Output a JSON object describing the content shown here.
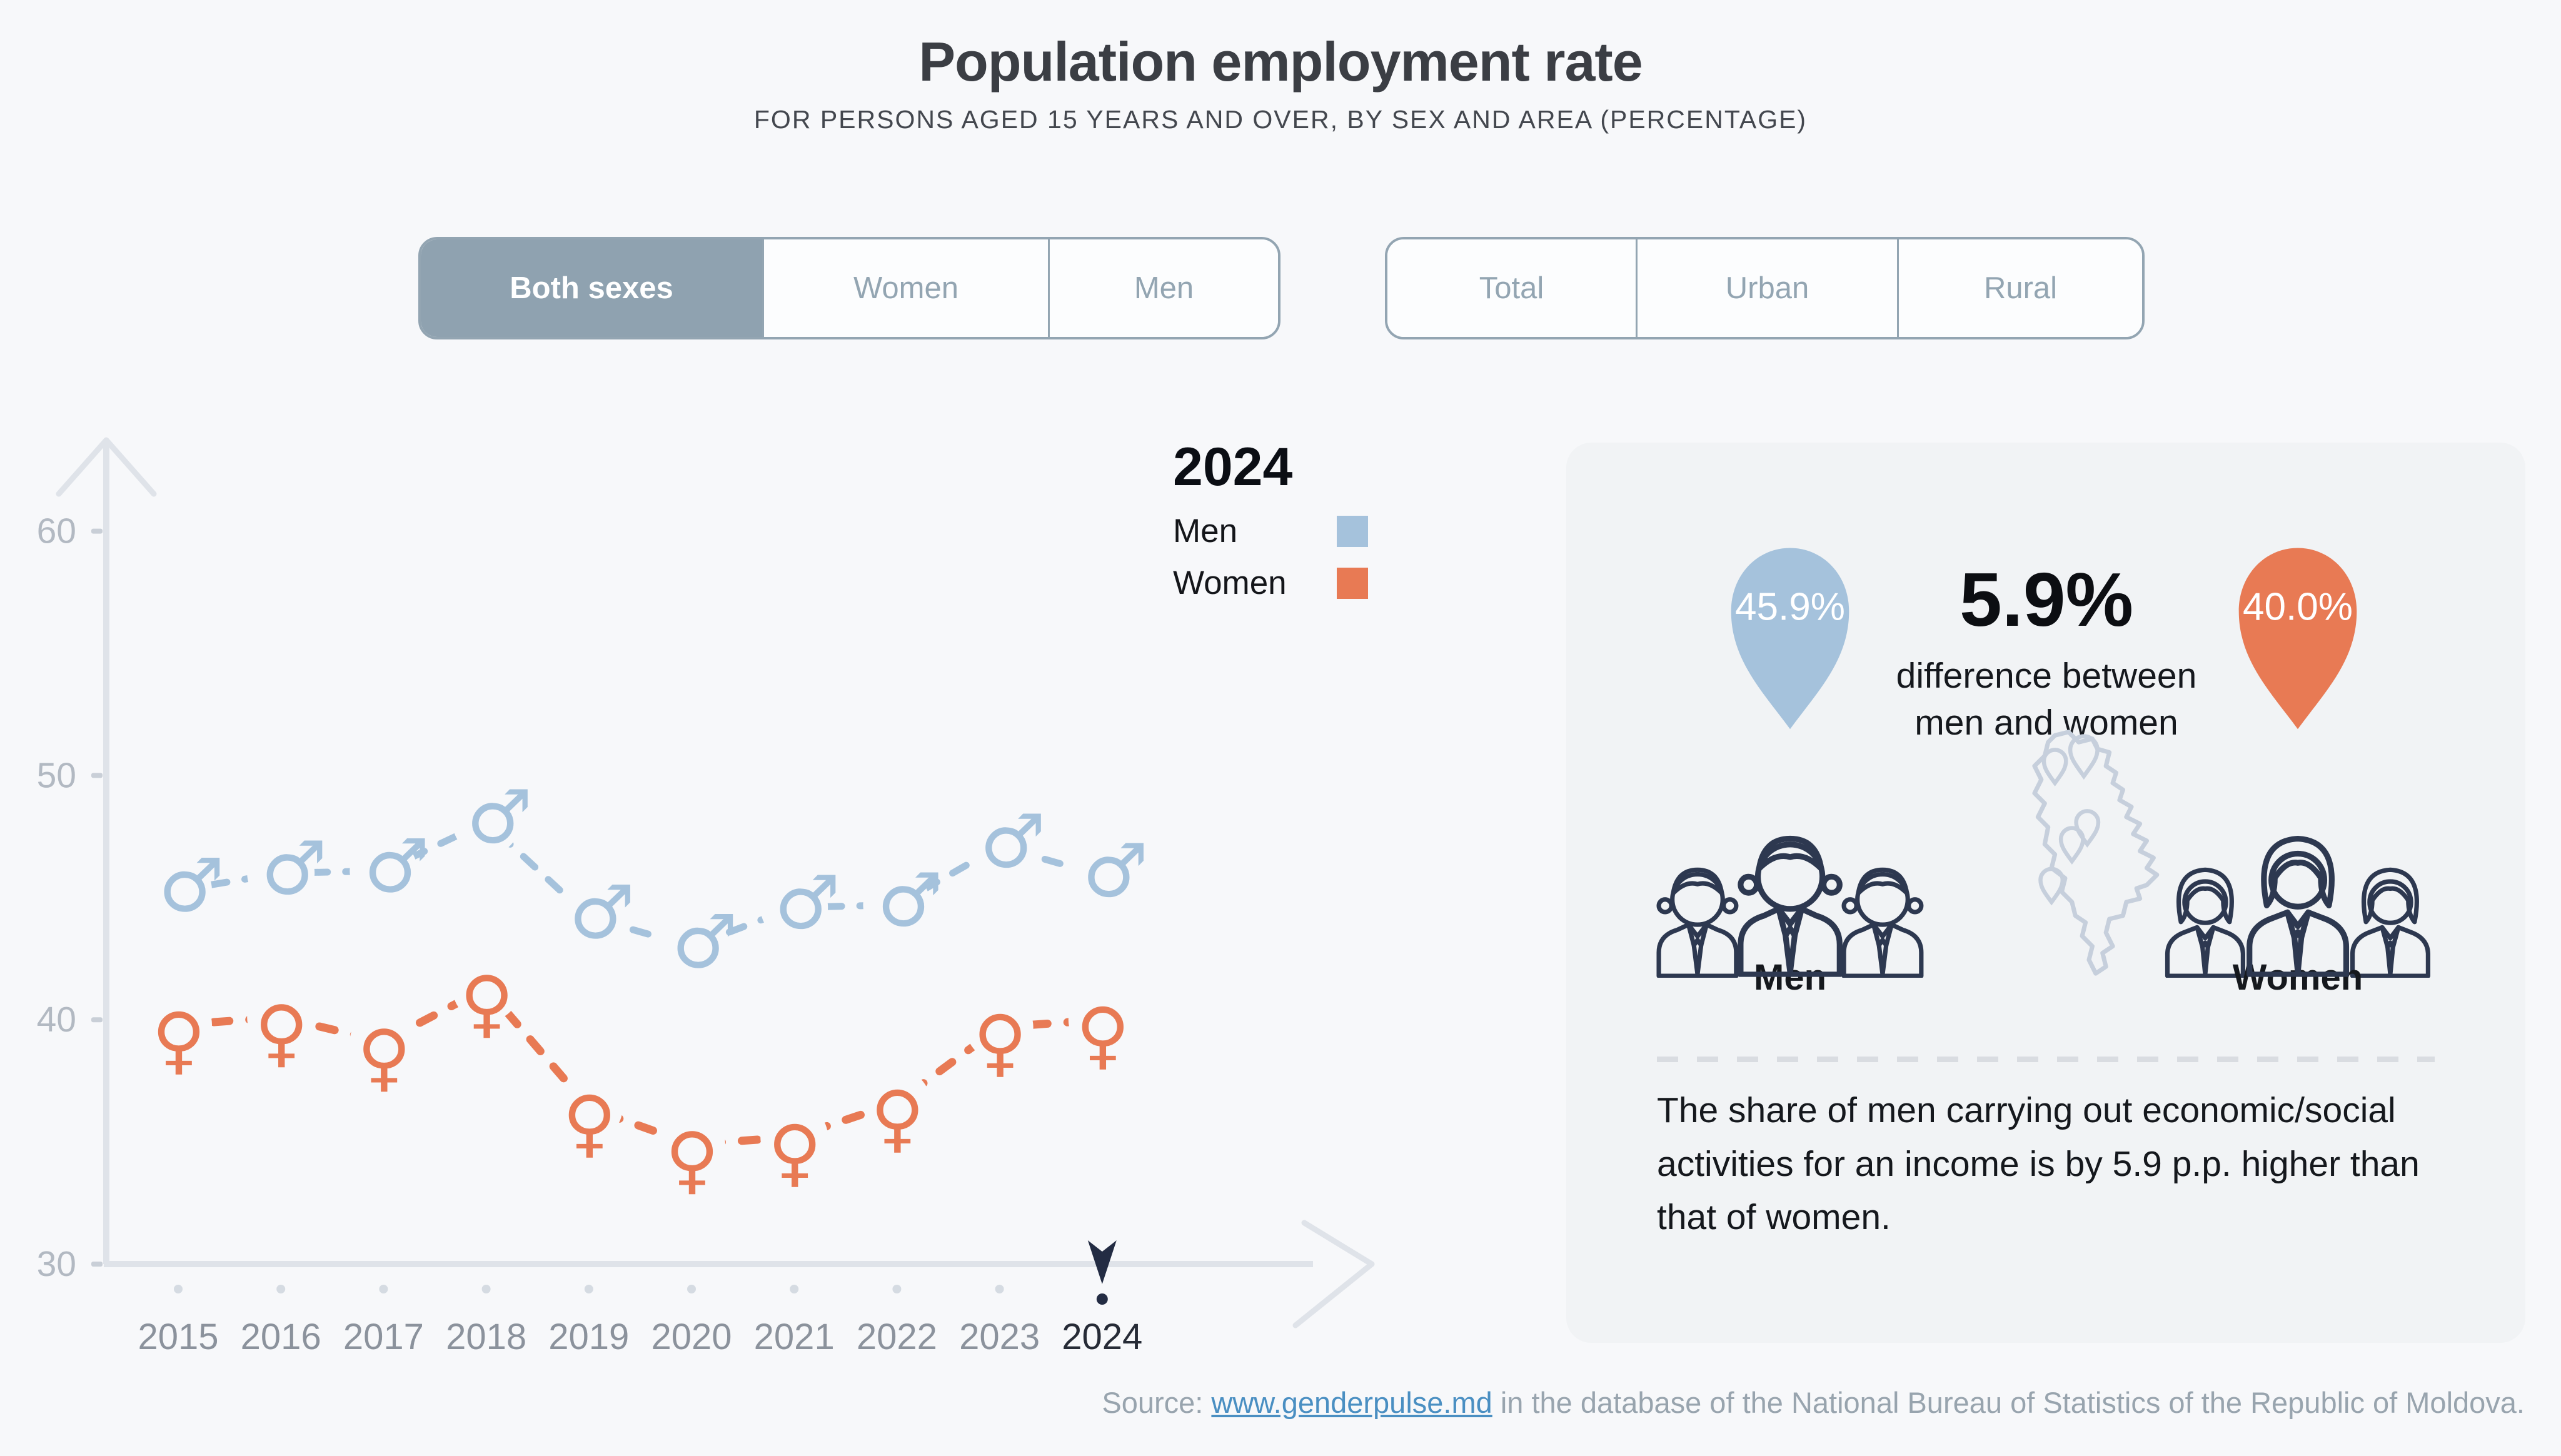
{
  "header": {
    "title": "Population employment rate",
    "subtitle": "FOR PERSONS AGED 15 YEARS AND OVER, BY SEX AND AREA (PERCENTAGE)"
  },
  "toggles": {
    "sex": {
      "selected": "Both sexes",
      "items": [
        {
          "label": "Both sexes",
          "selected": true
        },
        {
          "label": "Women",
          "selected": false
        },
        {
          "label": "Men",
          "selected": false
        }
      ]
    },
    "area": {
      "selected": "",
      "items": [
        {
          "label": "Total",
          "selected": false
        },
        {
          "label": "Urban",
          "selected": false
        },
        {
          "label": "Rural",
          "selected": false
        }
      ]
    }
  },
  "legend": {
    "year": "2024",
    "items": [
      {
        "label": "Men",
        "color": "#a5c2dc"
      },
      {
        "label": "Women",
        "color": "#e87a54"
      }
    ]
  },
  "chart_data": {
    "type": "line",
    "x": [
      2015,
      2016,
      2017,
      2018,
      2019,
      2020,
      2021,
      2022,
      2023,
      2024
    ],
    "series": [
      {
        "name": "Men",
        "glyph": "♂",
        "marker": "male",
        "color": "#a5c2dc",
        "line_style": "dashed",
        "values": [
          45.3,
          46.0,
          46.1,
          48.1,
          44.2,
          43.0,
          44.6,
          44.7,
          47.1,
          45.9
        ]
      },
      {
        "name": "Women",
        "glyph": "♀",
        "marker": "female",
        "color": "#e87a54",
        "line_style": "dashed",
        "values": [
          39.8,
          40.1,
          39.1,
          41.3,
          36.4,
          34.9,
          35.2,
          36.6,
          39.7,
          40.0
        ]
      }
    ],
    "ylim": [
      30,
      62
    ],
    "yticks": [
      60,
      50,
      40,
      30
    ],
    "highlight_x": 2024,
    "grid": false,
    "legend_position": "top-right",
    "axis_color": "#dfe3e9",
    "tick_label_color": "#b2b9c2",
    "year_label_color": "#8b929c",
    "highlight_color": "#232c43"
  },
  "panel": {
    "men_pin_value": "45.9%",
    "women_pin_value": "40.0%",
    "diff_value": "5.9%",
    "diff_caption": "difference between men and women",
    "men_label": "Men",
    "women_label": "Women",
    "note": "The share of men carrying out economic/social activities for an income is by 5.9 p.p. higher than that of women.",
    "colors": {
      "men_pin": "#a5c2dc",
      "women_pin": "#e87a54",
      "icon_navy": "#2d3850",
      "map_outline": "#c6cfdc"
    }
  },
  "source": {
    "prefix": "Source: ",
    "link": "www.genderpulse.md",
    "suffix": " in the database of the National Bureau of Statistics of the Republic of Moldova."
  }
}
